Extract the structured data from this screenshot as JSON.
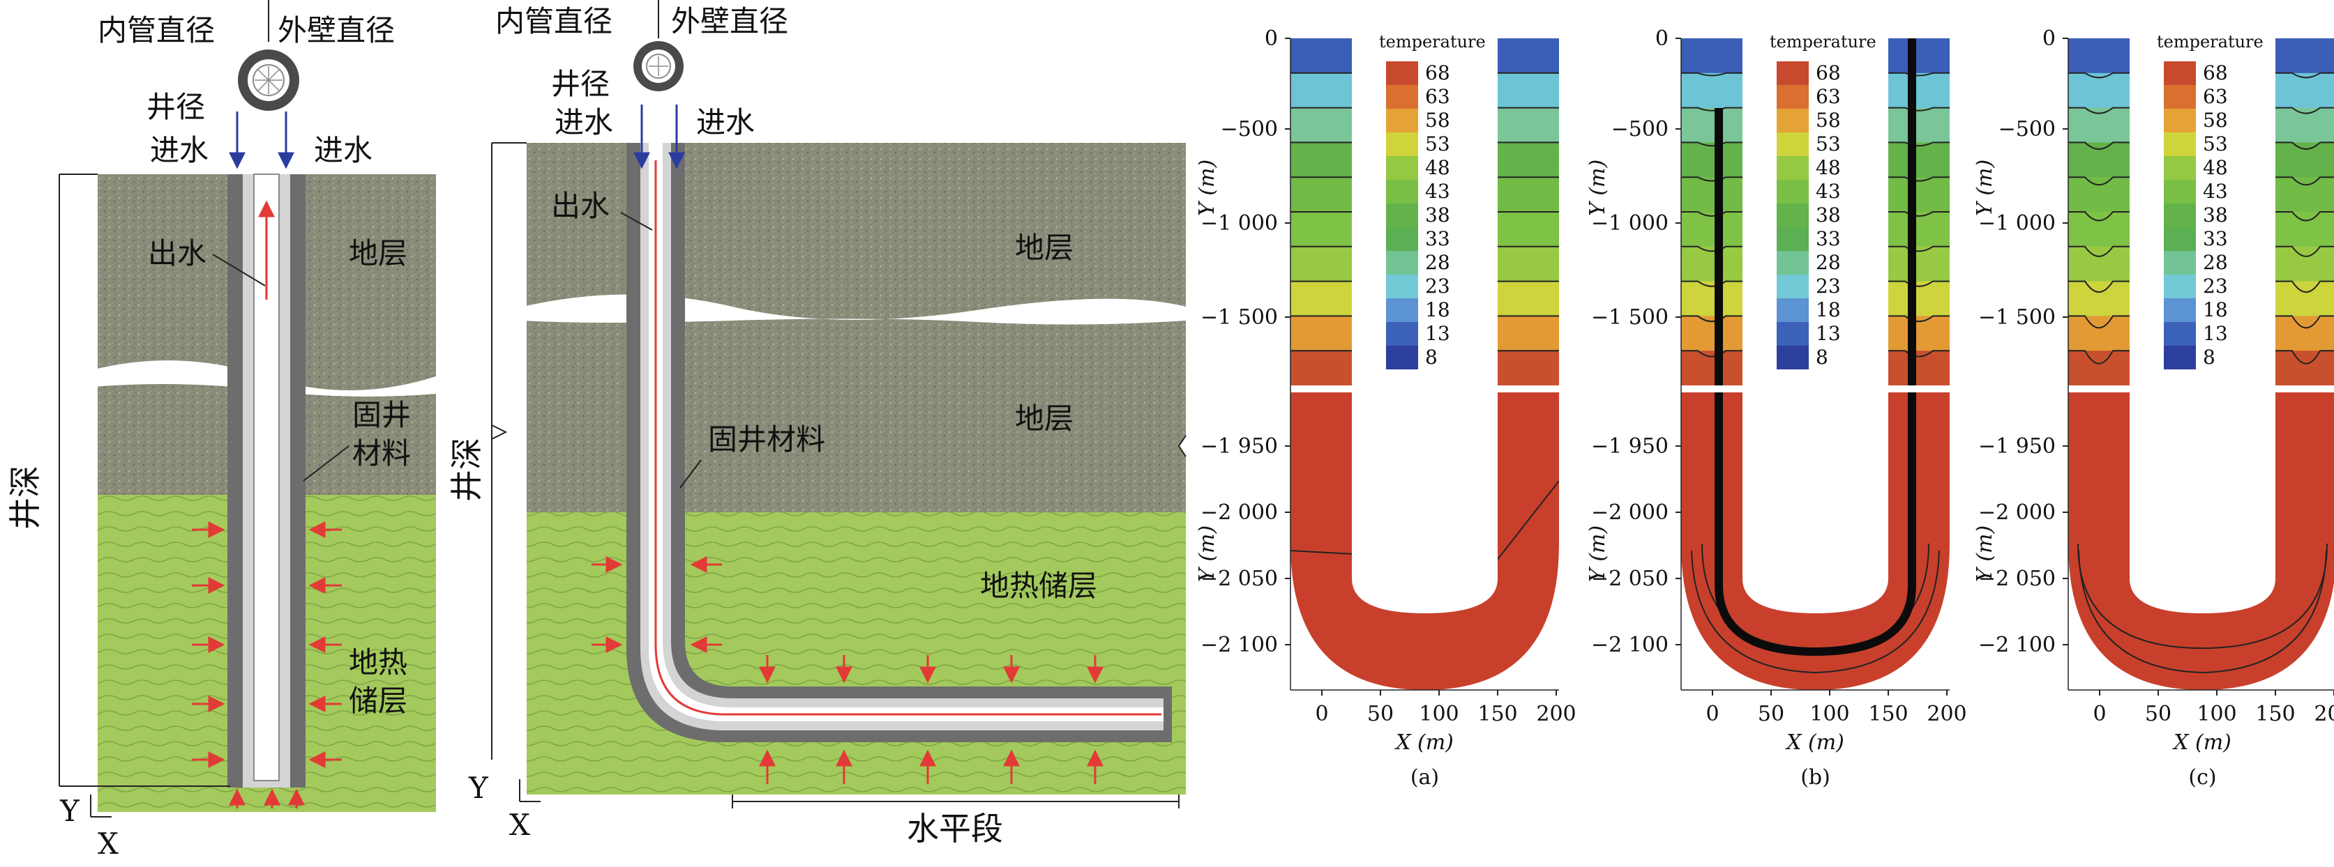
{
  "diagram_left": {
    "inner_pipe": "内管直径",
    "outer_wall": "外壁直径",
    "well_dia": "井径",
    "inlet_left": "进水",
    "inlet_right": "进水",
    "outlet": "出水",
    "formation": "地层",
    "cement_1": "固井",
    "cement_2": "材料",
    "depth": "井深",
    "reservoir_1": "地热",
    "reservoir_2": "储层",
    "axis_y": "Y",
    "axis_x": "X"
  },
  "diagram_mid": {
    "inner_pipe": "内管直径",
    "outer_wall": "外壁直径",
    "well_dia": "井径",
    "inlet_left": "进水",
    "inlet_right": "进水",
    "outlet": "出水",
    "formation_top": "地层",
    "formation_bottom": "地层",
    "cement": "固井材料",
    "depth": "井深",
    "reservoir": "地热储层",
    "horizontal": "水平段",
    "axis_y": "Y",
    "axis_x": "X"
  },
  "contour_panels": {
    "legend_title": "temperature",
    "legend_levels": [
      "68",
      "63",
      "58",
      "53",
      "48",
      "43",
      "38",
      "33",
      "28",
      "23",
      "18",
      "13",
      "8"
    ],
    "legend_colors": [
      "#c84a2e",
      "#d9702f",
      "#e5a335",
      "#cfd43a",
      "#95c843",
      "#79bf46",
      "#63b34a",
      "#5caf52",
      "#73c495",
      "#74c9d6",
      "#5b93d3",
      "#3c61b9",
      "#2d3f9c"
    ],
    "band_colors_top_to_bottom": [
      "#3b5fb7",
      "#6dc4d5",
      "#7ac699",
      "#63b34a",
      "#72bb47",
      "#7ec246",
      "#97c943",
      "#cdd43c",
      "#e39a35",
      "#c9502d"
    ],
    "reservoir_color": "#c8402c",
    "y_ticks_upper": [
      "0",
      "−500",
      "−1 000",
      "−1 500"
    ],
    "y_ticks_lower": [
      "−1 950",
      "−2 000",
      "−2 050",
      "−2 100"
    ],
    "x_ticks": [
      "0",
      "50",
      "100",
      "150",
      "200"
    ],
    "y_label": "Y (m)",
    "x_label": "X (m)",
    "panel_labels": [
      "(a)",
      "(b)",
      "(c)"
    ]
  }
}
